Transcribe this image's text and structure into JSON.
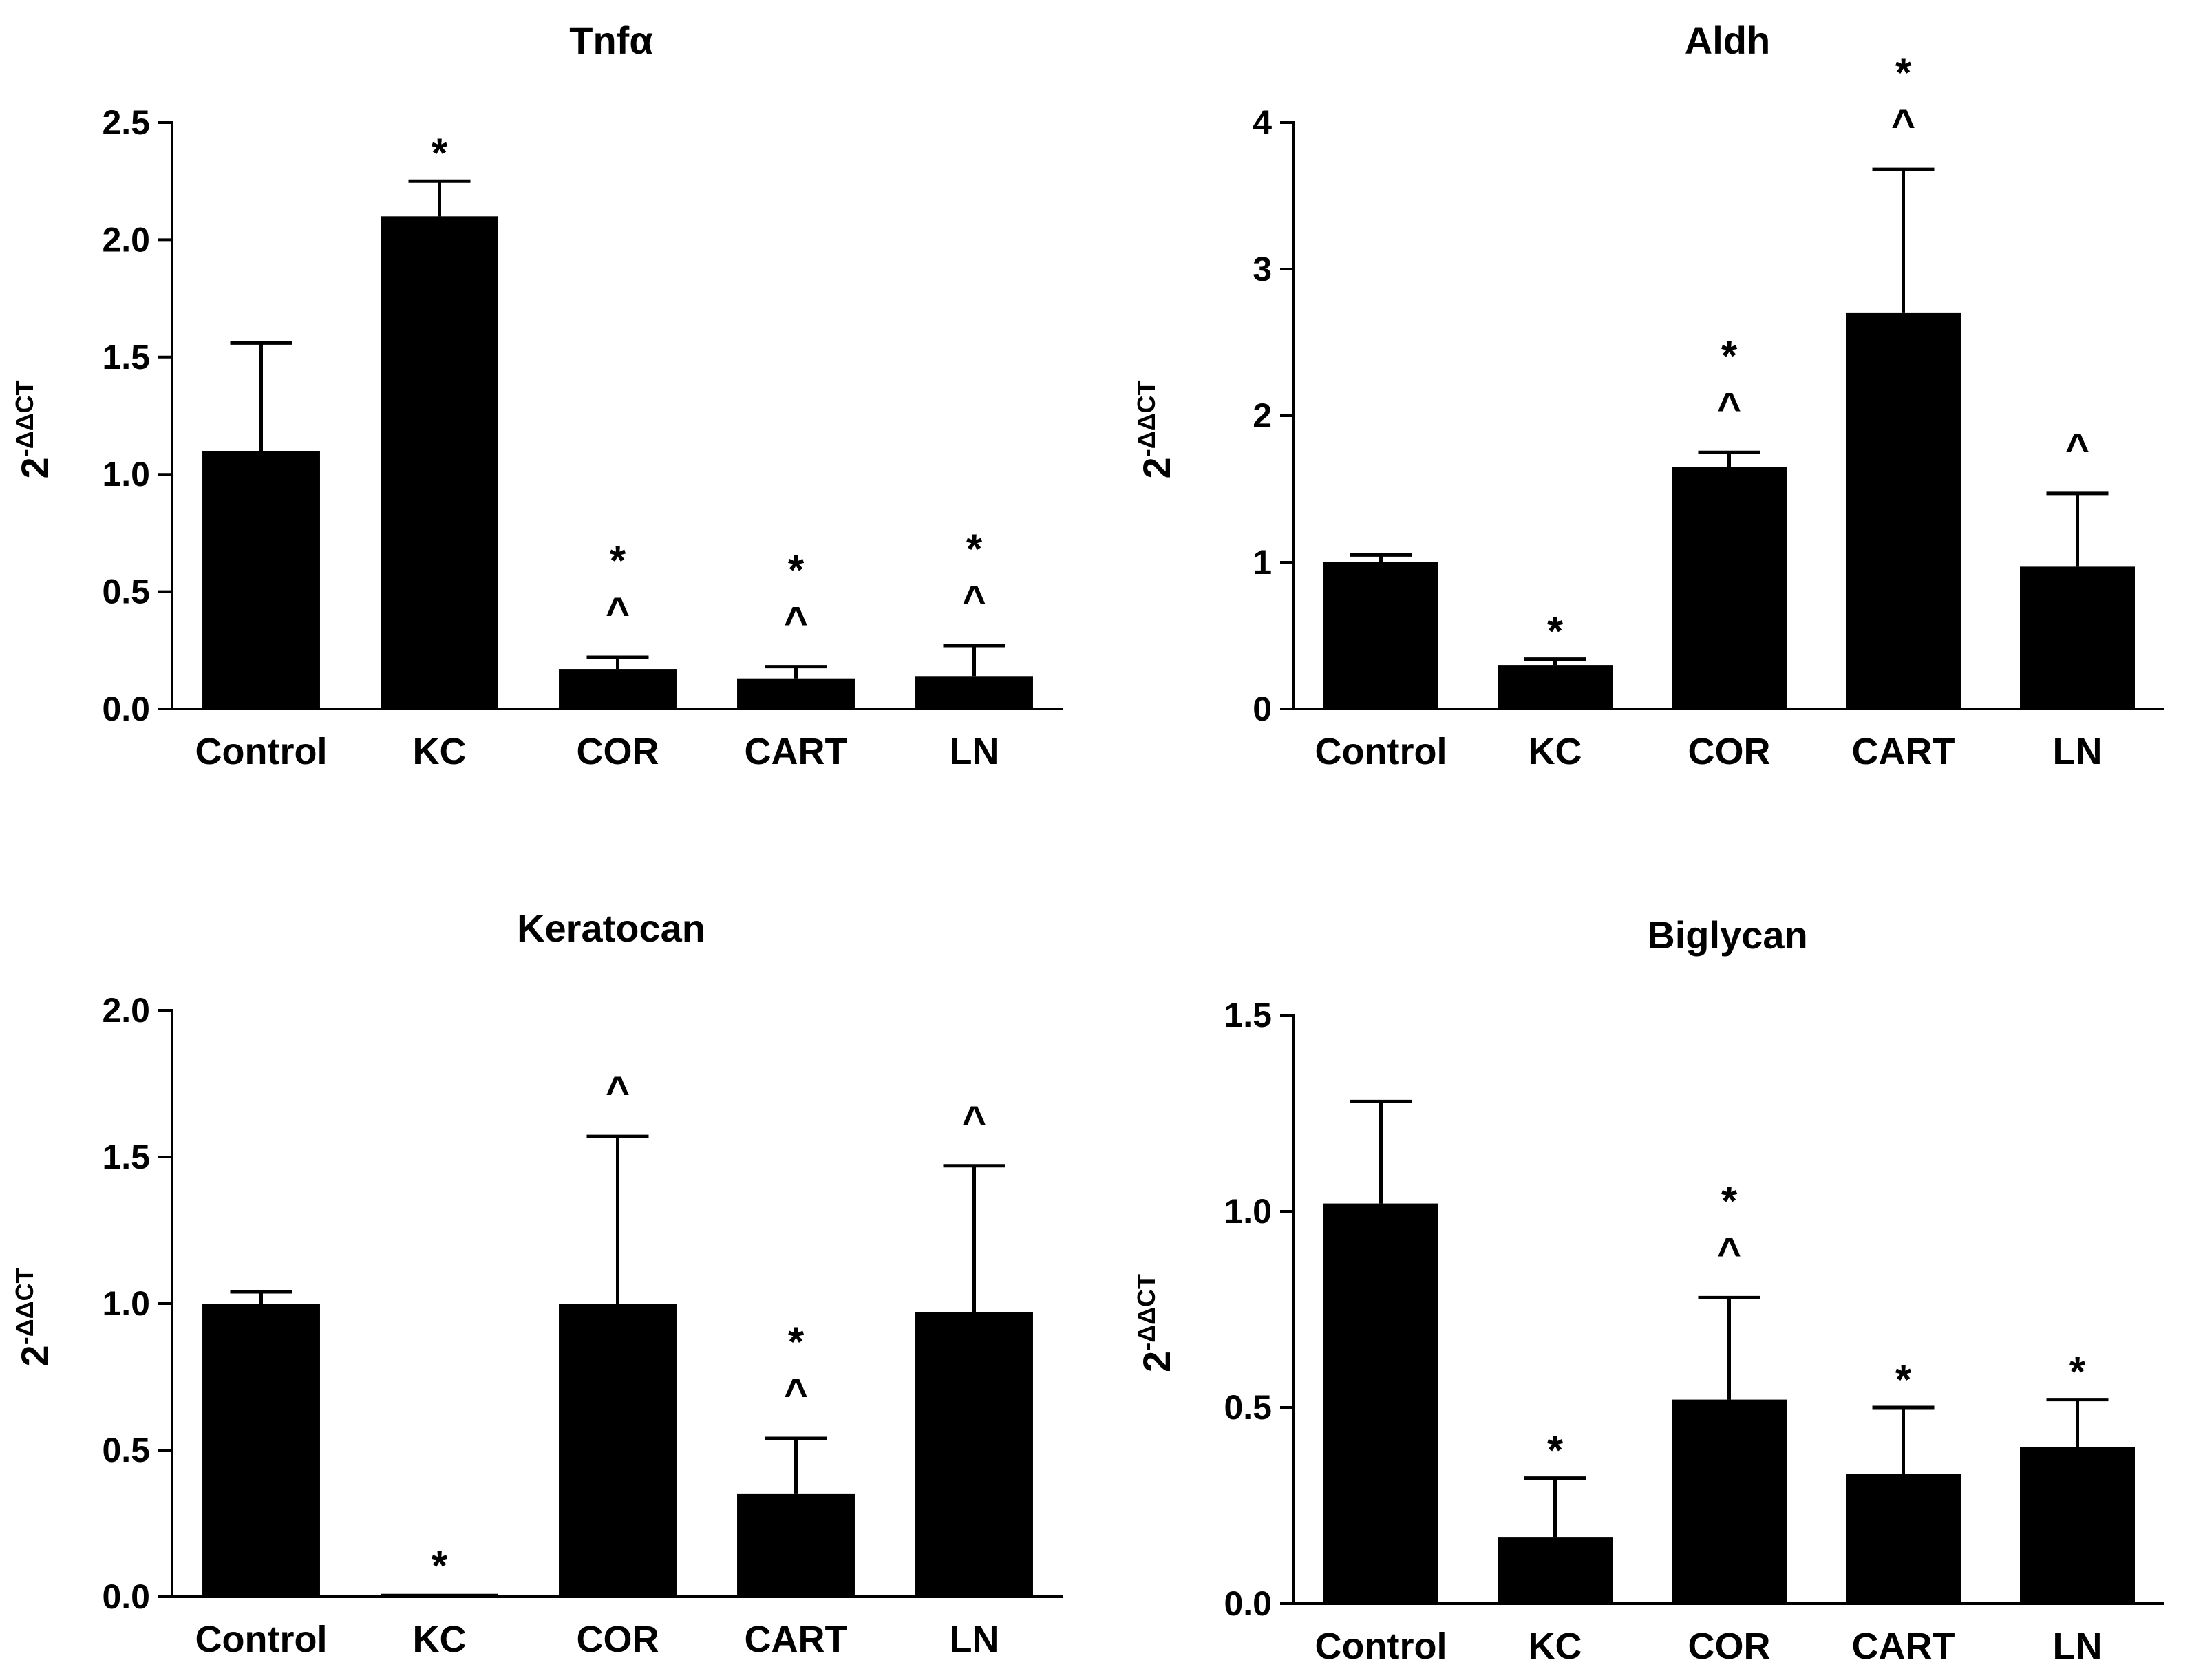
{
  "chart_data": [
    {
      "type": "bar",
      "title": "Tnfα",
      "ylabel_base": "2",
      "ylabel_exponent": "-ΔΔCT",
      "categories": [
        "Control",
        "KC",
        "COR",
        "CART",
        "LN"
      ],
      "values": [
        1.1,
        2.1,
        0.17,
        0.13,
        0.14
      ],
      "errors": [
        0.46,
        0.15,
        0.05,
        0.05,
        0.13
      ],
      "significance": [
        "",
        "*",
        "*^",
        "*^",
        "*^"
      ],
      "ylim": [
        0,
        2.5
      ],
      "yticks": [
        "0.0",
        "0.5",
        "1.0",
        "1.5",
        "2.0",
        "2.5"
      ],
      "color": "#000000"
    },
    {
      "type": "bar",
      "title": "Aldh",
      "ylabel_base": "2",
      "ylabel_exponent": "-ΔΔCT",
      "categories": [
        "Control",
        "KC",
        "COR",
        "CART",
        "LN"
      ],
      "values": [
        1.0,
        0.3,
        1.65,
        2.7,
        0.97
      ],
      "errors": [
        0.05,
        0.04,
        0.1,
        0.98,
        0.5
      ],
      "significance": [
        "",
        "*",
        "*^",
        "*^",
        "^"
      ],
      "ylim": [
        0,
        4
      ],
      "yticks": [
        "0",
        "1",
        "2",
        "3",
        "4"
      ],
      "color": "#000000"
    },
    {
      "type": "bar",
      "title": "Keratocan",
      "ylabel_base": "2",
      "ylabel_exponent": "-ΔΔCT",
      "categories": [
        "Control",
        "KC",
        "COR",
        "CART",
        "LN"
      ],
      "values": [
        1.0,
        0.01,
        1.0,
        0.35,
        0.97
      ],
      "errors": [
        0.04,
        0.0,
        0.57,
        0.19,
        0.5
      ],
      "significance": [
        "",
        "*",
        "^",
        "*^",
        "^"
      ],
      "ylim": [
        0,
        2.0
      ],
      "yticks": [
        "0.0",
        "0.5",
        "1.0",
        "1.5",
        "2.0"
      ],
      "color": "#000000"
    },
    {
      "type": "bar",
      "title": "Biglycan",
      "ylabel_base": "2",
      "ylabel_exponent": "-ΔΔCT",
      "categories": [
        "Control",
        "KC",
        "COR",
        "CART",
        "LN"
      ],
      "values": [
        1.02,
        0.17,
        0.52,
        0.33,
        0.4
      ],
      "errors": [
        0.26,
        0.15,
        0.26,
        0.17,
        0.12
      ],
      "significance": [
        "",
        "*",
        "*^",
        "*",
        "*"
      ],
      "ylim": [
        0,
        1.5
      ],
      "yticks": [
        "0.0",
        "0.5",
        "1.0",
        "1.5"
      ],
      "color": "#000000"
    }
  ]
}
